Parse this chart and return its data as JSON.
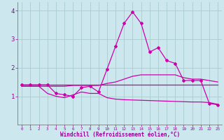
{
  "x": [
    0,
    1,
    2,
    3,
    4,
    5,
    6,
    7,
    8,
    9,
    10,
    11,
    12,
    13,
    14,
    15,
    16,
    17,
    18,
    19,
    20,
    21,
    22,
    23
  ],
  "line1": [
    1.4,
    1.4,
    1.4,
    1.4,
    1.4,
    1.4,
    1.4,
    1.4,
    1.4,
    1.4,
    1.4,
    1.4,
    1.4,
    1.4,
    1.4,
    1.4,
    1.4,
    1.4,
    1.4,
    1.4,
    1.4,
    1.4,
    1.4,
    1.4
  ],
  "line2": [
    1.35,
    1.35,
    1.35,
    1.35,
    1.35,
    1.35,
    1.38,
    1.38,
    1.38,
    1.38,
    1.45,
    1.5,
    1.6,
    1.7,
    1.75,
    1.75,
    1.75,
    1.75,
    1.75,
    1.65,
    1.6,
    1.6,
    1.55,
    1.5
  ],
  "line3": [
    1.4,
    1.4,
    1.4,
    1.4,
    1.1,
    1.05,
    1.0,
    1.3,
    1.35,
    1.15,
    1.95,
    2.75,
    3.55,
    3.95,
    3.55,
    2.55,
    2.7,
    2.25,
    2.15,
    1.55,
    1.55,
    1.55,
    0.75,
    0.7
  ],
  "line4": [
    1.35,
    1.35,
    1.35,
    1.1,
    1.0,
    0.95,
    1.05,
    1.15,
    1.1,
    1.1,
    0.95,
    0.9,
    0.88,
    0.87,
    0.86,
    0.85,
    0.84,
    0.83,
    0.82,
    0.81,
    0.8,
    0.8,
    0.78,
    0.72
  ],
  "bg_color": "#cce8ee",
  "grid_color": "#aacccc",
  "line_color": "#cc00aa",
  "xlabel": "Windchill (Refroidissement éolien,°C)",
  "xlabel_color": "#990099",
  "tick_color": "#990099",
  "ylim": [
    0,
    4.3
  ],
  "xlim": [
    -0.5,
    23.5
  ]
}
